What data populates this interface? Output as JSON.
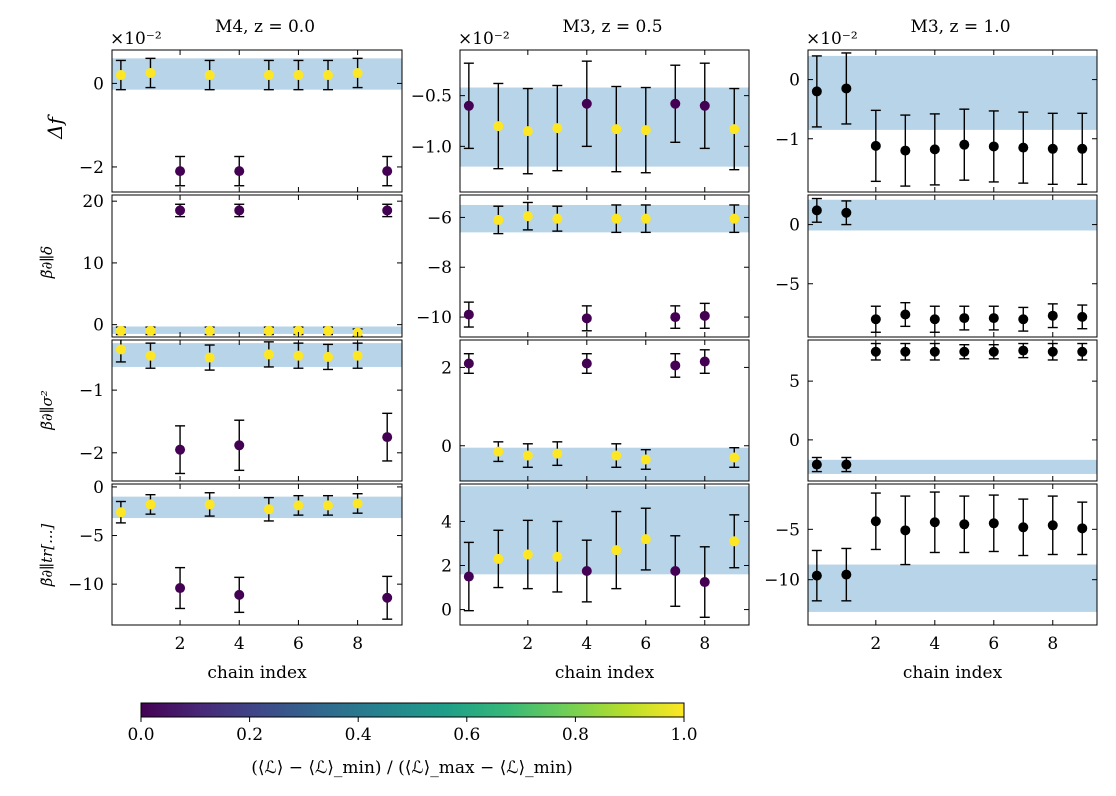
{
  "colors": {
    "band": "#b8d4e8",
    "error": "#000000",
    "black_point": "#000000"
  },
  "colorbar": {
    "ticks": [
      "0.0",
      "0.2",
      "0.4",
      "0.6",
      "0.8",
      "1.0"
    ],
    "label": "(⟨ℒ⟩ − ⟨ℒ⟩_min) / (⟨ℒ⟩_max − ⟨ℒ⟩_min)",
    "colormap": [
      "#440154",
      "#482878",
      "#3e4989",
      "#31688e",
      "#26828e",
      "#1f9e89",
      "#35b779",
      "#6ece58",
      "#b5de2b",
      "#fde725"
    ]
  },
  "row_labels": [
    "Δf",
    "β̃∂∥δ",
    "β̃∂∥σ²",
    "β̃∂∥tr[...]"
  ],
  "chart_data": [
    {
      "type": "scatter",
      "title": "M4, z = 0.0",
      "scale_label": "×10⁻²",
      "xlabel": "",
      "ylabel": "Δf",
      "xlim": [
        -0.3,
        9.5
      ],
      "ylim": [
        -2.6,
        0.8
      ],
      "xticks": [
        2,
        4,
        6,
        8
      ],
      "xticklabels": [],
      "yticks": [
        0,
        -2
      ],
      "yticklabels": [
        "0",
        "−2"
      ],
      "ytick_side": "left",
      "band": [
        -0.15,
        0.6
      ],
      "points": [
        {
          "x": 0,
          "y": 0.2,
          "err": 0.35,
          "c": 1
        },
        {
          "x": 1,
          "y": 0.25,
          "err": 0.35,
          "c": 1
        },
        {
          "x": 2,
          "y": -2.1,
          "err": 0.35,
          "c": 0
        },
        {
          "x": 3,
          "y": 0.2,
          "err": 0.35,
          "c": 1
        },
        {
          "x": 4,
          "y": -2.1,
          "err": 0.35,
          "c": 0
        },
        {
          "x": 5,
          "y": 0.2,
          "err": 0.35,
          "c": 1
        },
        {
          "x": 6,
          "y": 0.2,
          "err": 0.35,
          "c": 1
        },
        {
          "x": 7,
          "y": 0.2,
          "err": 0.35,
          "c": 1
        },
        {
          "x": 8,
          "y": 0.25,
          "err": 0.35,
          "c": 1
        },
        {
          "x": 9,
          "y": -2.1,
          "err": 0.35,
          "c": 0
        }
      ]
    },
    {
      "type": "scatter",
      "title": "M3, z = 0.5",
      "scale_label": "×10⁻²",
      "xlabel": "",
      "xlim": [
        -0.3,
        9.5
      ],
      "ylim": [
        -1.45,
        -0.05
      ],
      "xticks": [
        2,
        4,
        6,
        8
      ],
      "xticklabels": [],
      "yticks": [
        -0.5,
        -1.0
      ],
      "yticklabels": [
        "−0.5",
        "−1.0"
      ],
      "ytick_side": "left",
      "band": [
        -1.2,
        -0.42
      ],
      "points": [
        {
          "x": 0,
          "y": -0.6,
          "err": 0.42,
          "c": 0
        },
        {
          "x": 1,
          "y": -0.8,
          "err": 0.42,
          "c": 1
        },
        {
          "x": 2,
          "y": -0.85,
          "err": 0.42,
          "c": 1
        },
        {
          "x": 3,
          "y": -0.82,
          "err": 0.42,
          "c": 1
        },
        {
          "x": 4,
          "y": -0.58,
          "err": 0.42,
          "c": 0
        },
        {
          "x": 5,
          "y": -0.83,
          "err": 0.42,
          "c": 1
        },
        {
          "x": 6,
          "y": -0.84,
          "err": 0.42,
          "c": 1
        },
        {
          "x": 7,
          "y": -0.58,
          "err": 0.38,
          "c": 0
        },
        {
          "x": 8,
          "y": -0.6,
          "err": 0.42,
          "c": 0
        },
        {
          "x": 9,
          "y": -0.83,
          "err": 0.4,
          "c": 1
        }
      ]
    },
    {
      "type": "scatter",
      "title": "M3, z = 1.0",
      "scale_label": "×10⁻²",
      "xlabel": "",
      "xlim": [
        -0.3,
        9.5
      ],
      "ylim": [
        -1.9,
        0.5
      ],
      "xticks": [
        2,
        4,
        6,
        8
      ],
      "xticklabels": [],
      "yticks": [
        0,
        -1
      ],
      "yticklabels": [
        "0",
        "−1"
      ],
      "ytick_side": "left",
      "band": [
        -0.85,
        0.4
      ],
      "points": [
        {
          "x": 0,
          "y": -0.2,
          "err": 0.6,
          "c": "black"
        },
        {
          "x": 1,
          "y": -0.15,
          "err": 0.6,
          "c": "black"
        },
        {
          "x": 2,
          "y": -1.12,
          "err": 0.6,
          "c": "black"
        },
        {
          "x": 3,
          "y": -1.2,
          "err": 0.6,
          "c": "black"
        },
        {
          "x": 4,
          "y": -1.18,
          "err": 0.6,
          "c": "black"
        },
        {
          "x": 5,
          "y": -1.1,
          "err": 0.6,
          "c": "black"
        },
        {
          "x": 6,
          "y": -1.13,
          "err": 0.6,
          "c": "black"
        },
        {
          "x": 7,
          "y": -1.15,
          "err": 0.6,
          "c": "black"
        },
        {
          "x": 8,
          "y": -1.17,
          "err": 0.6,
          "c": "black"
        },
        {
          "x": 9,
          "y": -1.17,
          "err": 0.6,
          "c": "black"
        }
      ]
    },
    {
      "type": "scatter",
      "title": "",
      "xlabel": "",
      "xlim": [
        -0.3,
        9.5
      ],
      "ylim": [
        -2,
        21
      ],
      "xticks": [
        2,
        4,
        6,
        8
      ],
      "xticklabels": [],
      "yticks": [
        20,
        10,
        0
      ],
      "yticklabels": [
        "20",
        "10",
        "0"
      ],
      "ytick_side": "left",
      "band": [
        -1.5,
        -0.3
      ],
      "points": [
        {
          "x": 0,
          "y": -1,
          "err": 0.6,
          "c": 1
        },
        {
          "x": 1,
          "y": -1,
          "err": 0.6,
          "c": 1
        },
        {
          "x": 2,
          "y": 18.5,
          "err": 1.0,
          "c": 0
        },
        {
          "x": 3,
          "y": -1,
          "err": 0.6,
          "c": 1
        },
        {
          "x": 4,
          "y": 18.5,
          "err": 1.0,
          "c": 0
        },
        {
          "x": 5,
          "y": -1,
          "err": 0.6,
          "c": 1
        },
        {
          "x": 6,
          "y": -1,
          "err": 0.6,
          "c": 1
        },
        {
          "x": 7,
          "y": -1,
          "err": 0.6,
          "c": 1
        },
        {
          "x": 8,
          "y": -1.3,
          "err": 0.6,
          "c": 1
        },
        {
          "x": 9,
          "y": 18.5,
          "err": 1.0,
          "c": 0
        }
      ]
    },
    {
      "type": "scatter",
      "title": "",
      "xlabel": "",
      "xlim": [
        -0.3,
        9.5
      ],
      "ylim": [
        -10.8,
        -5.1
      ],
      "xticks": [
        2,
        4,
        6,
        8
      ],
      "xticklabels": [],
      "yticks": [
        -6,
        -8,
        -10
      ],
      "yticklabels": [
        "−6",
        "−8",
        "−10"
      ],
      "ytick_side": "left",
      "band": [
        -6.6,
        -5.5
      ],
      "points": [
        {
          "x": 0,
          "y": -9.9,
          "err": 0.5,
          "c": 0
        },
        {
          "x": 1,
          "y": -6.1,
          "err": 0.55,
          "c": 1
        },
        {
          "x": 2,
          "y": -5.95,
          "err": 0.55,
          "c": 1
        },
        {
          "x": 3,
          "y": -6.05,
          "err": 0.5,
          "c": 1
        },
        {
          "x": 4,
          "y": -10.05,
          "err": 0.5,
          "c": 0
        },
        {
          "x": 5,
          "y": -6.05,
          "err": 0.55,
          "c": 1
        },
        {
          "x": 6,
          "y": -6.05,
          "err": 0.55,
          "c": 1
        },
        {
          "x": 7,
          "y": -10.0,
          "err": 0.45,
          "c": 0
        },
        {
          "x": 8,
          "y": -9.95,
          "err": 0.5,
          "c": 0
        },
        {
          "x": 9,
          "y": -6.05,
          "err": 0.55,
          "c": 1
        }
      ]
    },
    {
      "type": "scatter",
      "title": "",
      "xlabel": "",
      "xlim": [
        -0.3,
        9.5
      ],
      "ylim": [
        -9.5,
        2.5
      ],
      "xticks": [
        2,
        4,
        6,
        8
      ],
      "xticklabels": [],
      "yticks": [
        0,
        -5
      ],
      "yticklabels": [
        "0",
        "−5"
      ],
      "ytick_side": "left",
      "band": [
        -0.5,
        2.1
      ],
      "points": [
        {
          "x": 0,
          "y": 1.2,
          "err": 1.0,
          "c": "black"
        },
        {
          "x": 1,
          "y": 1.0,
          "err": 1.0,
          "c": "black"
        },
        {
          "x": 2,
          "y": -8.0,
          "err": 1.1,
          "c": "black"
        },
        {
          "x": 3,
          "y": -7.6,
          "err": 1.0,
          "c": "black"
        },
        {
          "x": 4,
          "y": -8.0,
          "err": 1.1,
          "c": "black"
        },
        {
          "x": 5,
          "y": -7.9,
          "err": 1.0,
          "c": "black"
        },
        {
          "x": 6,
          "y": -7.9,
          "err": 1.0,
          "c": "black"
        },
        {
          "x": 7,
          "y": -8.0,
          "err": 1.0,
          "c": "black"
        },
        {
          "x": 8,
          "y": -7.7,
          "err": 1.0,
          "c": "black"
        },
        {
          "x": 9,
          "y": -7.8,
          "err": 1.0,
          "c": "black"
        }
      ]
    },
    {
      "type": "scatter",
      "title": "",
      "xlabel": "",
      "xlim": [
        -0.3,
        9.5
      ],
      "ylim": [
        -2.45,
        -0.2
      ],
      "xticks": [
        2,
        4,
        6,
        8
      ],
      "xticklabels": [],
      "yticks": [
        -1,
        -2
      ],
      "yticklabels": [
        "−1",
        "−2"
      ],
      "ytick_side": "left",
      "band": [
        -0.63,
        -0.25
      ],
      "points": [
        {
          "x": 0,
          "y": -0.35,
          "err": 0.2,
          "c": 1
        },
        {
          "x": 1,
          "y": -0.45,
          "err": 0.2,
          "c": 1
        },
        {
          "x": 2,
          "y": -1.95,
          "err": 0.38,
          "c": 0
        },
        {
          "x": 3,
          "y": -0.48,
          "err": 0.2,
          "c": 1
        },
        {
          "x": 4,
          "y": -1.88,
          "err": 0.4,
          "c": 0
        },
        {
          "x": 5,
          "y": -0.43,
          "err": 0.2,
          "c": 1
        },
        {
          "x": 6,
          "y": -0.45,
          "err": 0.2,
          "c": 1
        },
        {
          "x": 7,
          "y": -0.47,
          "err": 0.2,
          "c": 1
        },
        {
          "x": 8,
          "y": -0.45,
          "err": 0.2,
          "c": 1
        },
        {
          "x": 9,
          "y": -1.75,
          "err": 0.38,
          "c": 0
        }
      ]
    },
    {
      "type": "scatter",
      "title": "",
      "xlabel": "",
      "xlim": [
        -0.3,
        9.5
      ],
      "ylim": [
        -0.9,
        2.7
      ],
      "xticks": [
        2,
        4,
        6,
        8
      ],
      "xticklabels": [],
      "yticks": [
        2,
        0
      ],
      "yticklabels": [
        "2",
        "0"
      ],
      "ytick_side": "left",
      "band": [
        -0.9,
        -0.05
      ],
      "points": [
        {
          "x": 0,
          "y": 2.1,
          "err": 0.25,
          "c": 0
        },
        {
          "x": 1,
          "y": -0.15,
          "err": 0.25,
          "c": 1
        },
        {
          "x": 2,
          "y": -0.25,
          "err": 0.3,
          "c": 1
        },
        {
          "x": 3,
          "y": -0.2,
          "err": 0.3,
          "c": 1
        },
        {
          "x": 4,
          "y": 2.1,
          "err": 0.25,
          "c": 0
        },
        {
          "x": 5,
          "y": -0.25,
          "err": 0.3,
          "c": 1
        },
        {
          "x": 6,
          "y": -0.35,
          "err": 0.25,
          "c": 1
        },
        {
          "x": 7,
          "y": 2.05,
          "err": 0.3,
          "c": 0
        },
        {
          "x": 8,
          "y": 2.15,
          "err": 0.3,
          "c": 0
        },
        {
          "x": 9,
          "y": -0.3,
          "err": 0.25,
          "c": 1
        }
      ]
    },
    {
      "type": "scatter",
      "title": "",
      "xlabel": "",
      "xlim": [
        -0.3,
        9.5
      ],
      "ylim": [
        -3.5,
        8.5
      ],
      "xticks": [
        2,
        4,
        6,
        8
      ],
      "xticklabels": [],
      "yticks": [
        5,
        0
      ],
      "yticklabels": [
        "5",
        "0"
      ],
      "ytick_side": "left",
      "band": [
        -2.9,
        -1.7
      ],
      "points": [
        {
          "x": 0,
          "y": -2.1,
          "err": 0.6,
          "c": "black"
        },
        {
          "x": 1,
          "y": -2.1,
          "err": 0.6,
          "c": "black"
        },
        {
          "x": 2,
          "y": 7.5,
          "err": 0.7,
          "c": "black"
        },
        {
          "x": 3,
          "y": 7.5,
          "err": 0.7,
          "c": "black"
        },
        {
          "x": 4,
          "y": 7.5,
          "err": 0.7,
          "c": "black"
        },
        {
          "x": 5,
          "y": 7.5,
          "err": 0.6,
          "c": "black"
        },
        {
          "x": 6,
          "y": 7.5,
          "err": 0.6,
          "c": "black"
        },
        {
          "x": 7,
          "y": 7.6,
          "err": 0.6,
          "c": "black"
        },
        {
          "x": 8,
          "y": 7.5,
          "err": 0.7,
          "c": "black"
        },
        {
          "x": 9,
          "y": 7.5,
          "err": 0.7,
          "c": "black"
        }
      ]
    },
    {
      "type": "scatter",
      "title": "",
      "xlabel": "chain index",
      "xlim": [
        -0.3,
        9.5
      ],
      "ylim": [
        -14.2,
        0.3
      ],
      "xticks": [
        2,
        4,
        6,
        8
      ],
      "xticklabels": [
        "2",
        "4",
        "6",
        "8"
      ],
      "yticks": [
        0,
        -5,
        -10
      ],
      "yticklabels": [
        "0",
        "−5",
        "−10"
      ],
      "ytick_side": "left",
      "band": [
        -3.2,
        -1.0
      ],
      "points": [
        {
          "x": 0,
          "y": -2.6,
          "err": 1.1,
          "c": 1
        },
        {
          "x": 1,
          "y": -1.8,
          "err": 1.0,
          "c": 1
        },
        {
          "x": 2,
          "y": -10.4,
          "err": 2.1,
          "c": 0
        },
        {
          "x": 3,
          "y": -1.8,
          "err": 1.2,
          "c": 1
        },
        {
          "x": 4,
          "y": -11.1,
          "err": 1.8,
          "c": 0
        },
        {
          "x": 5,
          "y": -2.3,
          "err": 1.2,
          "c": 1
        },
        {
          "x": 6,
          "y": -1.9,
          "err": 1.0,
          "c": 1
        },
        {
          "x": 7,
          "y": -1.9,
          "err": 1.0,
          "c": 1
        },
        {
          "x": 8,
          "y": -1.7,
          "err": 1.0,
          "c": 1
        },
        {
          "x": 9,
          "y": -11.4,
          "err": 2.2,
          "c": 0
        }
      ]
    },
    {
      "type": "scatter",
      "title": "",
      "xlabel": "chain index",
      "xlim": [
        -0.3,
        9.5
      ],
      "ylim": [
        -0.7,
        5.7
      ],
      "xticks": [
        2,
        4,
        6,
        8
      ],
      "xticklabels": [
        "2",
        "4",
        "6",
        "8"
      ],
      "yticks": [
        4,
        2,
        0
      ],
      "yticklabels": [
        "4",
        "2",
        "0"
      ],
      "ytick_side": "left",
      "band": [
        1.6,
        5.6
      ],
      "points": [
        {
          "x": 0,
          "y": 1.5,
          "err": 1.55,
          "c": 0
        },
        {
          "x": 1,
          "y": 2.3,
          "err": 1.3,
          "c": 1
        },
        {
          "x": 2,
          "y": 2.5,
          "err": 1.55,
          "c": 1
        },
        {
          "x": 3,
          "y": 2.4,
          "err": 1.6,
          "c": 1
        },
        {
          "x": 4,
          "y": 1.75,
          "err": 1.4,
          "c": 0
        },
        {
          "x": 5,
          "y": 2.7,
          "err": 1.75,
          "c": 1
        },
        {
          "x": 6,
          "y": 3.2,
          "err": 1.4,
          "c": 1
        },
        {
          "x": 7,
          "y": 1.75,
          "err": 1.6,
          "c": 0
        },
        {
          "x": 8,
          "y": 1.25,
          "err": 1.6,
          "c": 0
        },
        {
          "x": 9,
          "y": 3.1,
          "err": 1.2,
          "c": 1
        }
      ]
    },
    {
      "type": "scatter",
      "title": "",
      "xlabel": "chain index",
      "xlim": [
        -0.3,
        9.5
      ],
      "ylim": [
        -14.5,
        -0.5
      ],
      "xticks": [
        2,
        4,
        6,
        8
      ],
      "xticklabels": [
        "2",
        "4",
        "6",
        "8"
      ],
      "yticks": [
        -5,
        -10
      ],
      "yticklabels": [
        "−5",
        "−10"
      ],
      "ytick_side": "left",
      "band": [
        -13.2,
        -8.5
      ],
      "points": [
        {
          "x": 0,
          "y": -9.6,
          "err": 2.5,
          "c": "black"
        },
        {
          "x": 1,
          "y": -9.5,
          "err": 2.6,
          "c": "black"
        },
        {
          "x": 2,
          "y": -4.2,
          "err": 2.8,
          "c": "black"
        },
        {
          "x": 3,
          "y": -5.1,
          "err": 3.4,
          "c": "black"
        },
        {
          "x": 4,
          "y": -4.3,
          "err": 3.0,
          "c": "black"
        },
        {
          "x": 5,
          "y": -4.5,
          "err": 2.8,
          "c": "black"
        },
        {
          "x": 6,
          "y": -4.4,
          "err": 2.8,
          "c": "black"
        },
        {
          "x": 7,
          "y": -4.8,
          "err": 2.8,
          "c": "black"
        },
        {
          "x": 8,
          "y": -4.6,
          "err": 2.9,
          "c": "black"
        },
        {
          "x": 9,
          "y": -4.9,
          "err": 2.6,
          "c": "black"
        }
      ]
    }
  ]
}
